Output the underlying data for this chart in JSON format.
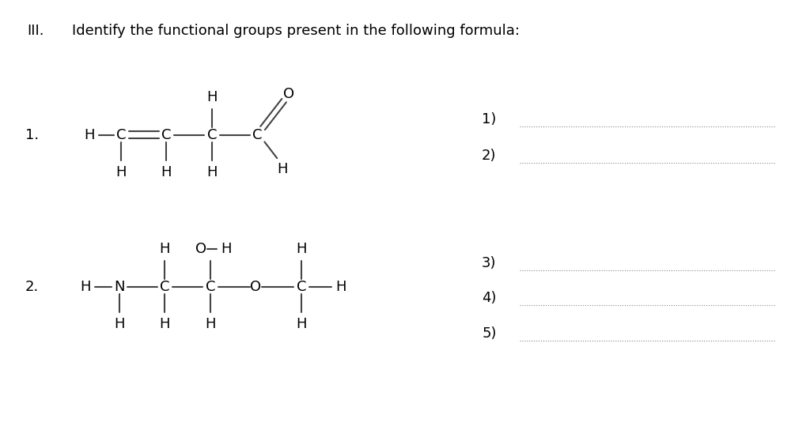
{
  "title_roman": "III.",
  "title_text": "Identify the functional groups present in the following formula:",
  "bg_color": "#ffffff",
  "text_color": "#000000",
  "font_size": 13,
  "answer_labels": [
    "1)",
    "2)",
    "3)",
    "4)",
    "5)"
  ],
  "line_color": "#444444"
}
